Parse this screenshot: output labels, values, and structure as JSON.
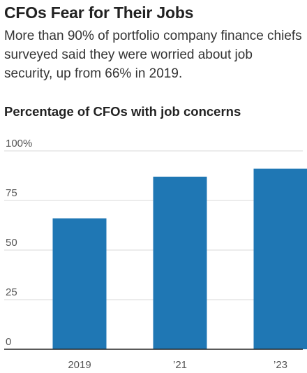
{
  "header": {
    "title": "CFOs Fear for Their Jobs",
    "subtitle": "More than 90% of portfolio company finance chiefs surveyed said they were worried about job security, up from 66% in 2019."
  },
  "chart_data": {
    "type": "bar",
    "title": "Percentage of CFOs with job concerns",
    "categories": [
      "2019",
      "’21",
      "’23"
    ],
    "values": [
      66,
      87,
      91
    ],
    "ylim": [
      0,
      100
    ],
    "yticks": [
      0,
      25,
      50,
      75,
      100
    ],
    "ytick_labels": [
      "0",
      "25",
      "50",
      "75",
      "100%"
    ],
    "xlabel": "",
    "ylabel": "",
    "grid": true,
    "colors": {
      "bar": "#1f77b4",
      "grid": "#d9d9d9",
      "axis": "#222222"
    }
  }
}
